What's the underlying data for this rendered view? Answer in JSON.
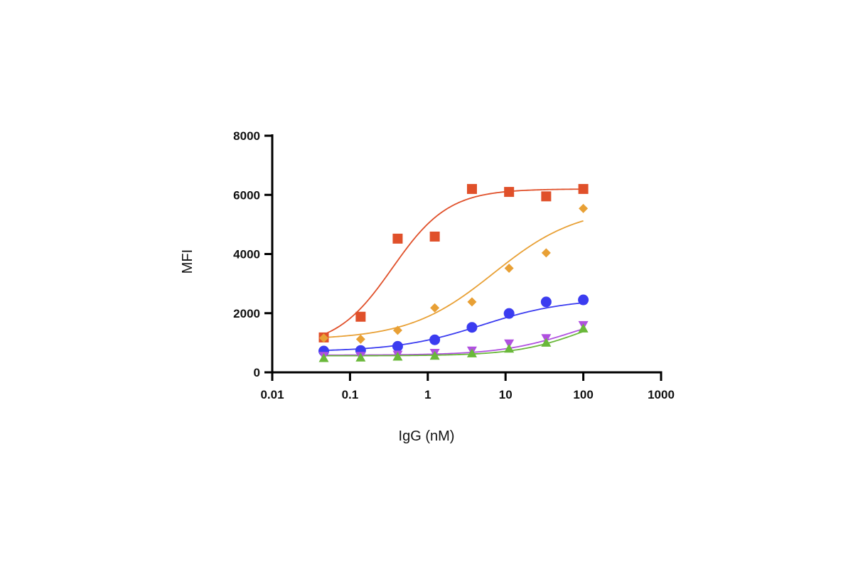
{
  "chart_data": {
    "type": "scatter",
    "title": "",
    "xlabel": "IgG (nM)",
    "ylabel": "MFI",
    "x_scale": "log",
    "xlim": [
      0.01,
      1000
    ],
    "ylim": [
      0,
      8000
    ],
    "x_ticks": [
      0.01,
      0.1,
      1,
      10,
      100,
      1000
    ],
    "x_tick_labels": [
      "0.01",
      "0.1",
      "1",
      "10",
      "100",
      "1000"
    ],
    "y_ticks": [
      0,
      2000,
      4000,
      6000,
      8000
    ],
    "y_tick_labels": [
      "0",
      "2000",
      "4000",
      "6000",
      "8000"
    ],
    "grid": false,
    "legend": "none",
    "fit": "sigmoidal dose-response curve per series",
    "x": [
      0.046,
      0.137,
      0.41,
      1.23,
      3.7,
      11.1,
      33.3,
      100
    ],
    "series": [
      {
        "marker": "square",
        "color": "#e0502a",
        "values": [
          1180,
          1880,
          4520,
          4590,
          6200,
          6100,
          5950,
          6200
        ],
        "fit": {
          "bottom": 850,
          "top": 6200,
          "ec50": 0.35,
          "hill": 1.2
        }
      },
      {
        "marker": "diamond",
        "color": "#e8a035",
        "values": [
          1160,
          1120,
          1420,
          2180,
          2380,
          3520,
          4040,
          5540
        ],
        "fit": {
          "bottom": 1100,
          "top": 5600,
          "ec50": 7,
          "hill": 0.8
        }
      },
      {
        "marker": "circle",
        "color": "#3b3cf0",
        "values": [
          720,
          740,
          880,
          1100,
          1520,
          1990,
          2380,
          2450
        ],
        "fit": {
          "bottom": 700,
          "top": 2500,
          "ec50": 5,
          "hill": 0.8
        }
      },
      {
        "marker": "triangle-down",
        "color": "#b050e0",
        "values": [
          560,
          560,
          600,
          660,
          740,
          980,
          1160,
          1600
        ],
        "fit": {
          "bottom": 580,
          "top": 2200,
          "ec50": 80,
          "hill": 0.9
        }
      },
      {
        "marker": "triangle-up",
        "color": "#6ab83a",
        "values": [
          480,
          500,
          530,
          560,
          640,
          800,
          1000,
          1480
        ],
        "fit": {
          "bottom": 560,
          "top": 2200,
          "ec50": 100,
          "hill": 1.0
        }
      }
    ]
  }
}
